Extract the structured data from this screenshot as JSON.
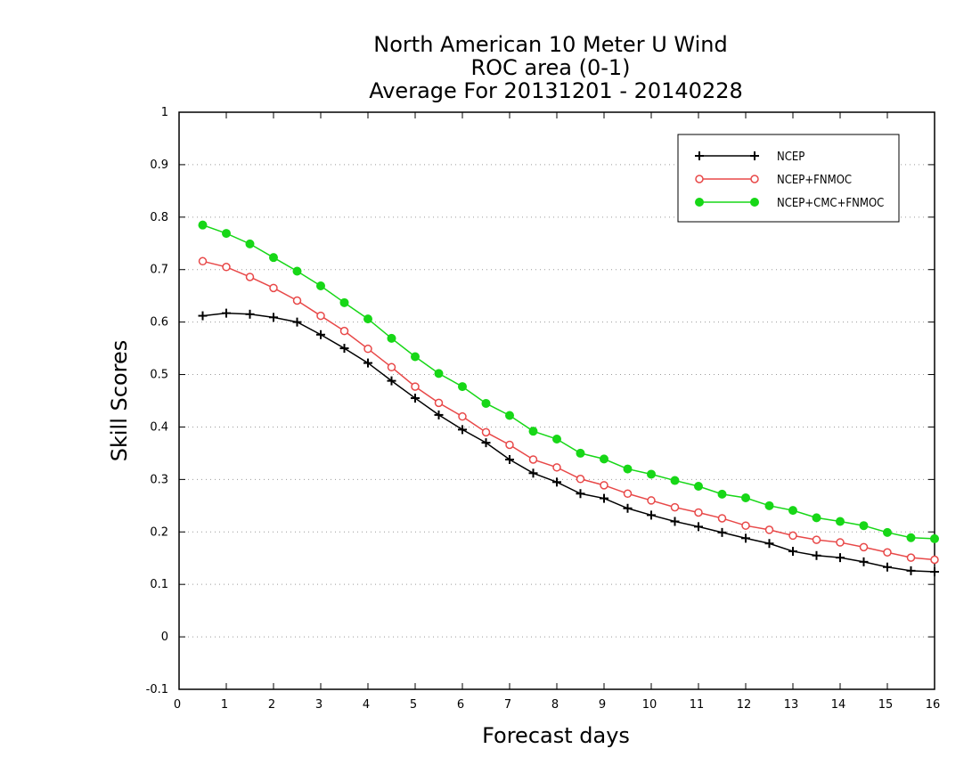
{
  "chart_data": {
    "type": "line",
    "title": [
      "North American 10 Meter U Wind",
      "ROC area (0-1)",
      "Average For 20131201 - 20140228"
    ],
    "xlabel": "Forecast days",
    "ylabel": "Skill Scores",
    "xlim": [
      0,
      16
    ],
    "ylim": [
      -0.1,
      1
    ],
    "xticks": [
      0,
      1,
      2,
      3,
      4,
      5,
      6,
      7,
      8,
      9,
      10,
      11,
      12,
      13,
      14,
      15,
      16
    ],
    "yticks": [
      -0.1,
      0,
      0.1,
      0.2,
      0.3,
      0.4,
      0.5,
      0.6,
      0.7,
      0.8,
      0.9,
      1
    ],
    "ytick_labels": [
      "-0.1",
      "0",
      "0.1",
      "0.2",
      "0.3",
      "0.4",
      "0.5",
      "0.6",
      "0.7",
      "0.8",
      "0.9",
      "1"
    ],
    "grid": "horizontal-dotted",
    "legend_position": "top-right",
    "x": [
      0.5,
      1,
      1.5,
      2,
      2.5,
      3,
      3.5,
      4,
      4.5,
      5,
      5.5,
      6,
      6.5,
      7,
      7.5,
      8,
      8.5,
      9,
      9.5,
      10,
      10.5,
      11,
      11.5,
      12,
      12.5,
      13,
      13.5,
      14,
      14.5,
      15,
      15.5,
      16
    ],
    "series": [
      {
        "name": "NCEP",
        "color": "#000000",
        "marker": "plus",
        "values": [
          0.612,
          0.617,
          0.615,
          0.609,
          0.6,
          0.576,
          0.55,
          0.522,
          0.488,
          0.455,
          0.423,
          0.395,
          0.37,
          0.338,
          0.312,
          0.295,
          0.273,
          0.264,
          0.245,
          0.232,
          0.22,
          0.21,
          0.199,
          0.188,
          0.178,
          0.163,
          0.155,
          0.151,
          0.143,
          0.133,
          0.126,
          0.124
        ]
      },
      {
        "name": "NCEP+FNMOC",
        "color": "#e84848",
        "marker": "open-circle",
        "values": [
          0.716,
          0.705,
          0.686,
          0.665,
          0.641,
          0.612,
          0.583,
          0.549,
          0.514,
          0.477,
          0.446,
          0.42,
          0.39,
          0.366,
          0.338,
          0.323,
          0.301,
          0.289,
          0.273,
          0.26,
          0.247,
          0.237,
          0.226,
          0.212,
          0.204,
          0.193,
          0.185,
          0.18,
          0.171,
          0.161,
          0.151,
          0.147
        ]
      },
      {
        "name": "NCEP+CMC+FNMOC",
        "color": "#17d717",
        "marker": "filled-circle",
        "values": [
          0.785,
          0.769,
          0.749,
          0.723,
          0.697,
          0.669,
          0.637,
          0.606,
          0.569,
          0.534,
          0.502,
          0.477,
          0.445,
          0.422,
          0.392,
          0.377,
          0.35,
          0.339,
          0.32,
          0.31,
          0.298,
          0.287,
          0.272,
          0.265,
          0.25,
          0.241,
          0.227,
          0.22,
          0.212,
          0.199,
          0.189,
          0.187
        ]
      }
    ]
  }
}
